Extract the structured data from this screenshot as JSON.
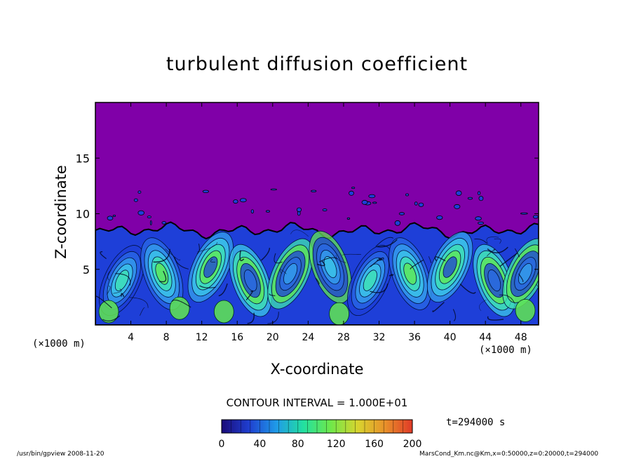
{
  "chart_data": {
    "type": "heatmap",
    "title": "turbulent diffusion coefficient",
    "xlabel": "X-coordinate",
    "ylabel": "Z-coordinate",
    "x_unit_label": "(×1000 m)",
    "x_ticks": [
      4,
      8,
      12,
      16,
      20,
      24,
      28,
      32,
      36,
      40,
      44,
      48
    ],
    "y_ticks": [
      5,
      10,
      15
    ],
    "xlim": [
      0,
      50
    ],
    "ylim": [
      0,
      20
    ],
    "contour_interval_label": "CONTOUR INTERVAL = 1.000E+01",
    "time_label": "t=294000 s",
    "colorbar": {
      "ticks": [
        0,
        40,
        80,
        120,
        160,
        200
      ],
      "range": [
        0,
        200
      ],
      "colors": [
        "#1a0a78",
        "#1f3fd0",
        "#1f9ae8",
        "#22e0a0",
        "#6ee84a",
        "#d8d42e",
        "#e8902a",
        "#e03a28"
      ]
    },
    "background_color": "#8000a8",
    "boundary_layer_top_km": 8.5,
    "field_colors": [
      "#1e3fd8",
      "#2a6ae6",
      "#35a2ec",
      "#3cc8e8",
      "#3fe4b0",
      "#62e850"
    ]
  },
  "footer": {
    "left": "/usr/bin/gpview   2008-11-20",
    "right": "MarsCond_Km.nc@Km,x=0:50000,z=0:20000,t=294000"
  }
}
